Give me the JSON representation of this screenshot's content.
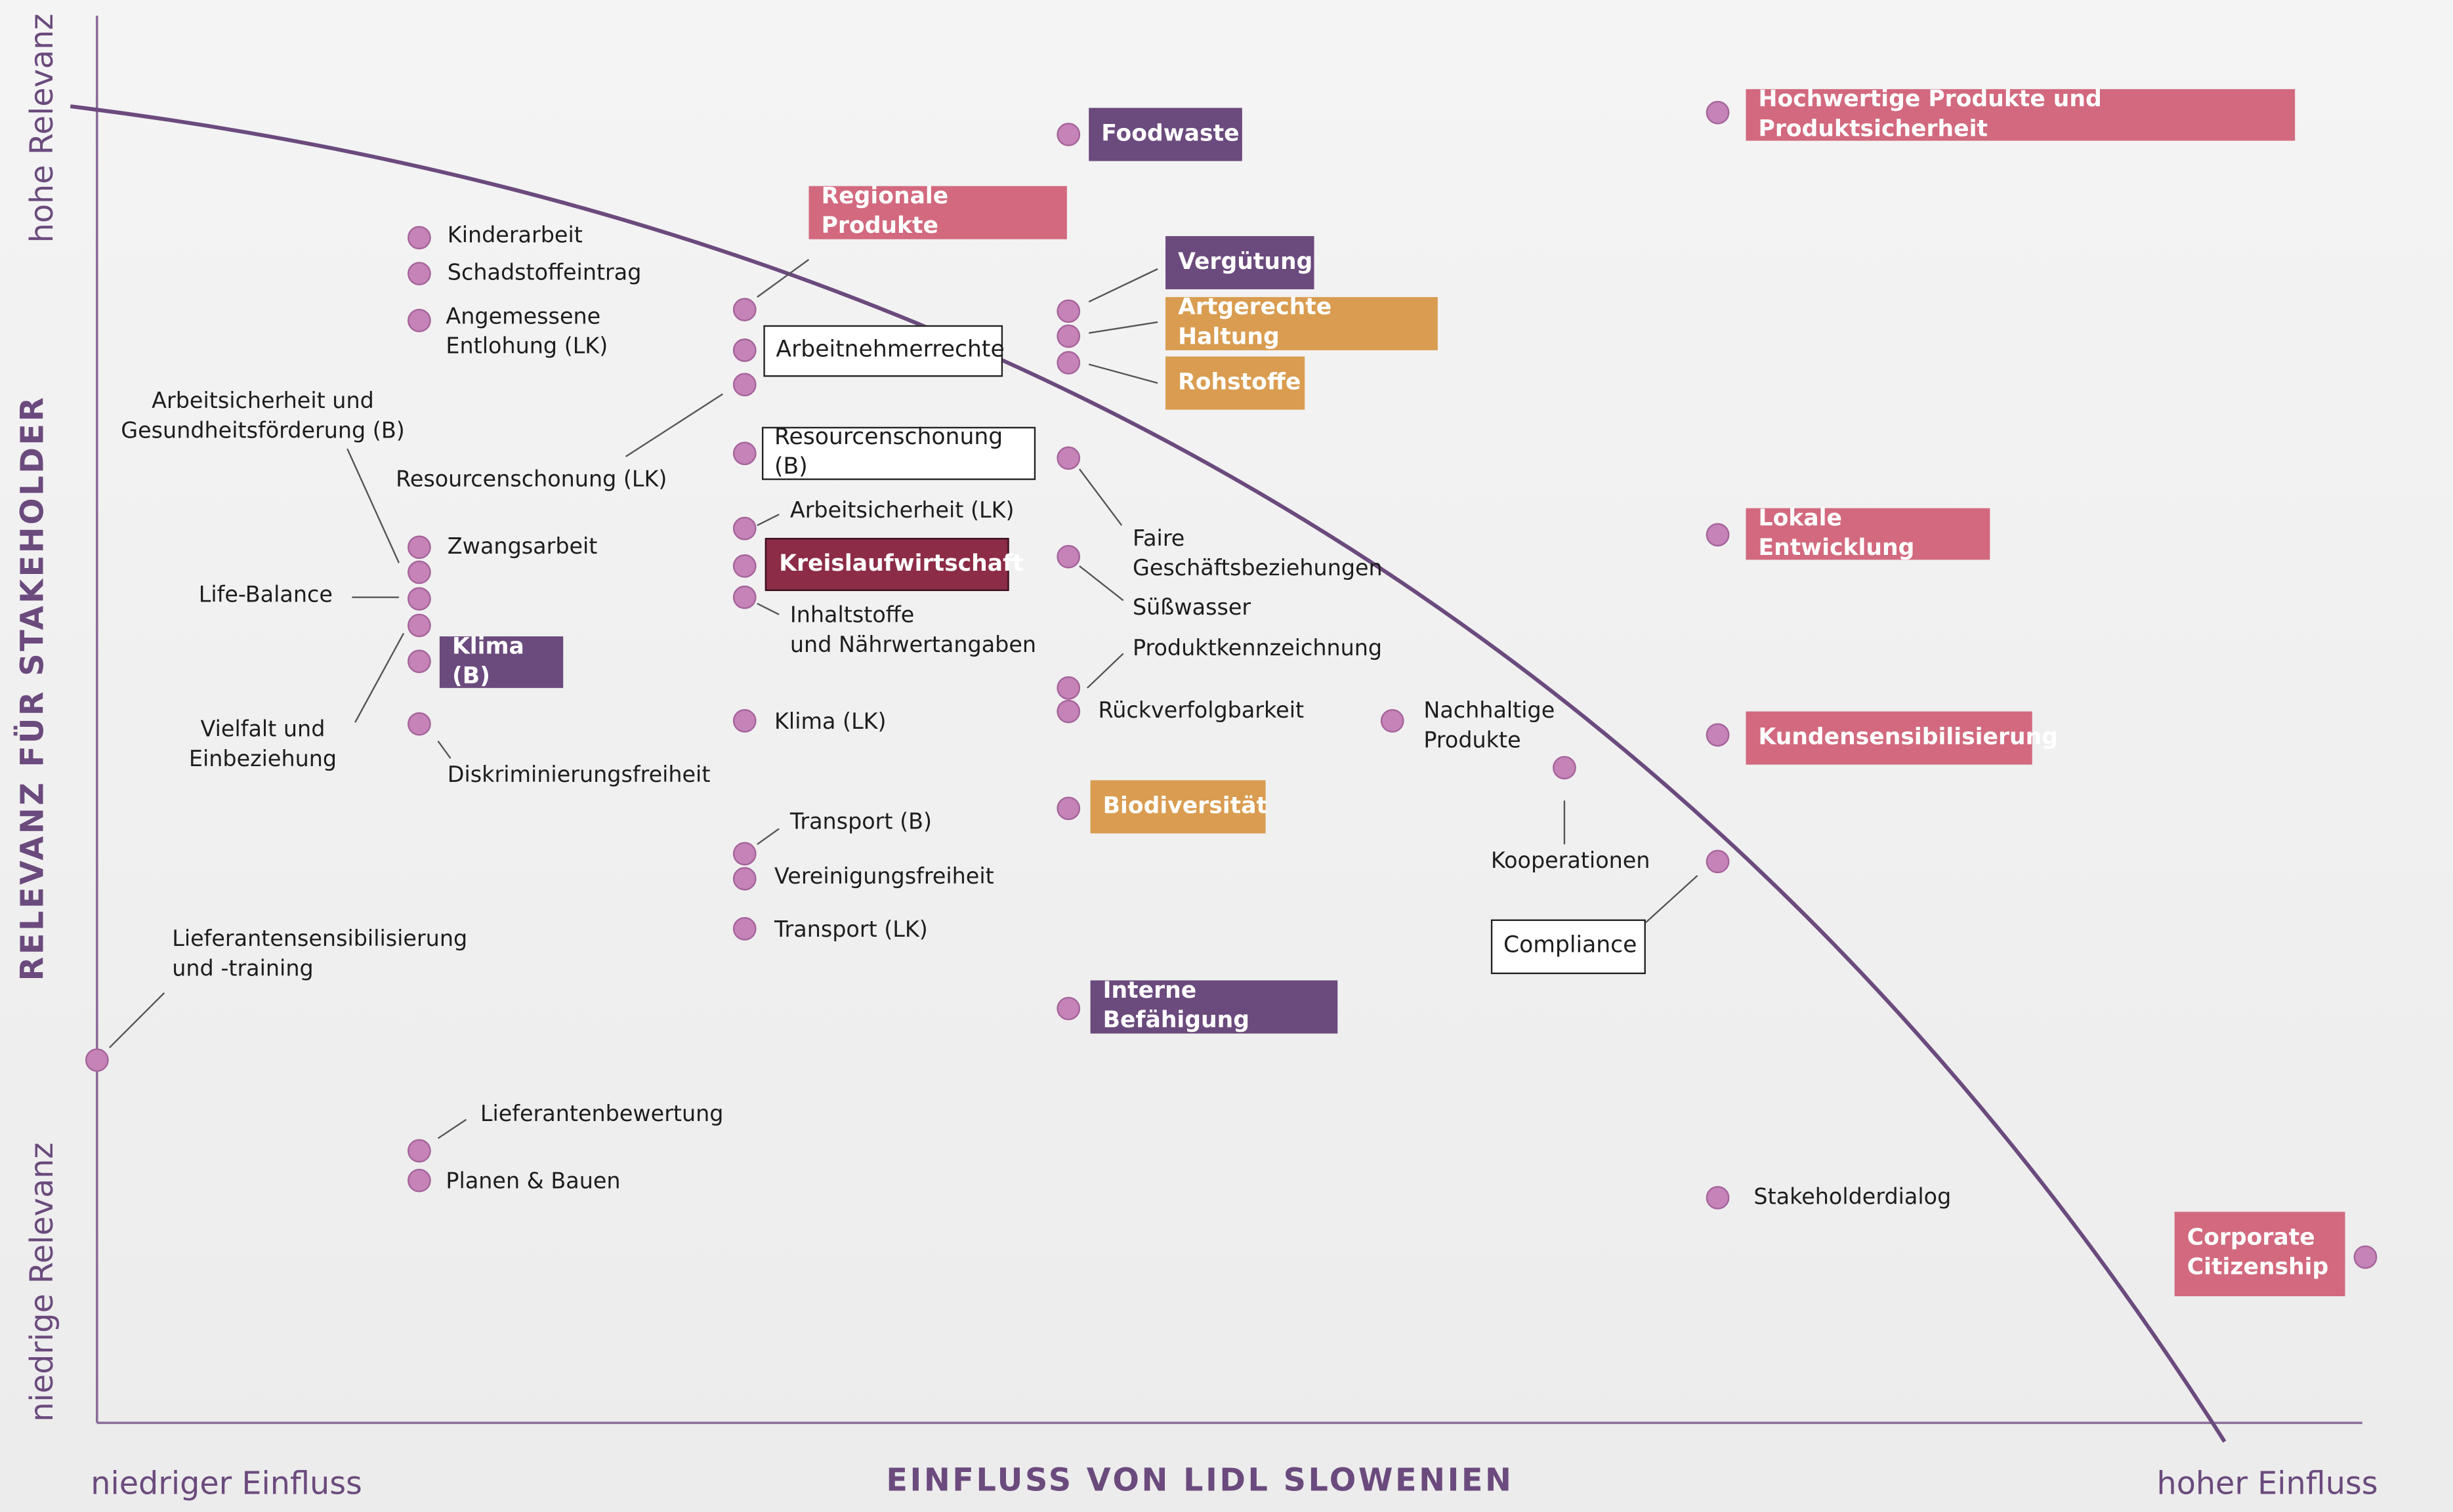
{
  "axes": {
    "y_high": "hohe Relevanz",
    "y_title": "RELEVANZ FÜR STAKEHOLDER",
    "y_low": "niedrige Relevanz",
    "x_low": "niedriger Einfluss",
    "x_title": "EINFLUSS VON LIDL SLOWENIEN",
    "x_high": "hoher Einfluss"
  },
  "topics": [
    {
      "label": "Foodwaste"
    },
    {
      "label": "Hochwertige Produkte und Produktsicherheit"
    },
    {
      "label": "Regionale Produkte"
    },
    {
      "label": "Kinderarbeit"
    },
    {
      "label": "Schadstoffeintrag"
    },
    {
      "label": "Angemessene\nEntlohung (LK)"
    },
    {
      "label": "Arbeitnehmerrechte"
    },
    {
      "label": "Vergütung"
    },
    {
      "label": "Artgerechte Haltung"
    },
    {
      "label": "Rohstoffe"
    },
    {
      "label": "Arbeitsicherheit und\nGesundheitsförderung (B)"
    },
    {
      "label": "Resourcenschonung (LK)"
    },
    {
      "label": "Resourcenschonung (B)"
    },
    {
      "label": "Arbeitsicherheit (LK)"
    },
    {
      "label": "Kreislaufwirtschaft"
    },
    {
      "label": "Inhaltstoffe\nund Nährwertangaben"
    },
    {
      "label": "Faire\nGeschäftsbeziehungen"
    },
    {
      "label": "Süßwasser"
    },
    {
      "label": "Produktkennzeichnung"
    },
    {
      "label": "Rückverfolgbarkeit"
    },
    {
      "label": "Zwangsarbeit"
    },
    {
      "label": "Life-Balance"
    },
    {
      "label": "Klima (B)"
    },
    {
      "label": "Vielfalt und\nEinbeziehung"
    },
    {
      "label": "Diskriminierungsfreiheit"
    },
    {
      "label": "Klima (LK)"
    },
    {
      "label": "Nachhaltige\nProdukte"
    },
    {
      "label": "Kooperationen"
    },
    {
      "label": "Biodiversität"
    },
    {
      "label": "Transport (B)"
    },
    {
      "label": "Vereinigungsfreiheit"
    },
    {
      "label": "Transport (LK)"
    },
    {
      "label": "Lokale Entwicklung"
    },
    {
      "label": "Kundensensibilisierung"
    },
    {
      "label": "Compliance"
    },
    {
      "label": "Interne Befähigung"
    },
    {
      "label": "Lieferantensensibilisierung\nund -training"
    },
    {
      "label": "Lieferantenbewertung"
    },
    {
      "label": "Planen & Bauen"
    },
    {
      "label": "Stakeholderdialog"
    },
    {
      "label": "Corporate\nCitizenship"
    }
  ]
}
